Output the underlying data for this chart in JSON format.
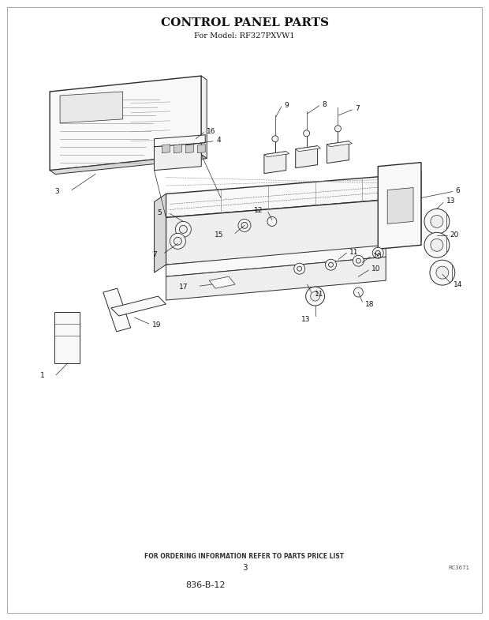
{
  "title": "CONTROL PANEL PARTS",
  "subtitle": "For Model: RF327PXVW1",
  "bg_color": "#ffffff",
  "footer_text": "FOR ORDERING INFORMATION REFER TO PARTS PRICE LIST",
  "page_number": "3",
  "doc_number": "RC3671",
  "part_number": "836-B-12",
  "title_fontsize": 11,
  "subtitle_fontsize": 7,
  "footer_fontsize": 5.5,
  "line_color": "#2a2a2a",
  "fill_light": "#f8f8f8",
  "fill_mid": "#eeeeee",
  "fill_dark": "#d8d8d8"
}
